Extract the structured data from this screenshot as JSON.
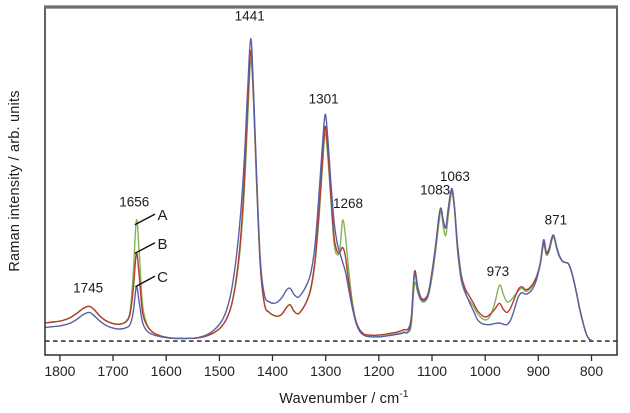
{
  "chart_data": {
    "type": "line",
    "title": "",
    "xlabel": "Wavenumber / cm",
    "xlabel_superscript": "-1",
    "ylabel": "Raman intensity / arb. units",
    "x_axis": {
      "ticks": [
        1800,
        1700,
        1600,
        1500,
        1400,
        1300,
        1200,
        1100,
        1000,
        900,
        800
      ],
      "xlim": [
        1828,
        752
      ],
      "reversed": true,
      "unit": "cm-1"
    },
    "y_axis": {
      "ylim": [
        -4.6,
        110.5
      ],
      "baseline": 0,
      "baseline_style": "dashed",
      "ticks": []
    },
    "x": [
      1830,
      1812,
      1795,
      1780,
      1768,
      1756,
      1745,
      1736,
      1726,
      1714,
      1700,
      1688,
      1676,
      1668,
      1662,
      1656,
      1651,
      1645,
      1637,
      1626,
      1612,
      1598,
      1580,
      1560,
      1540,
      1522,
      1508,
      1496,
      1486,
      1477,
      1468,
      1460,
      1453,
      1447,
      1441,
      1436,
      1430,
      1423,
      1415,
      1406,
      1398,
      1390,
      1382,
      1374,
      1367,
      1360,
      1352,
      1344,
      1336,
      1328,
      1320,
      1312,
      1306,
      1301,
      1296,
      1290,
      1284,
      1278,
      1273,
      1268,
      1263,
      1257,
      1250,
      1243,
      1236,
      1228,
      1220,
      1210,
      1200,
      1190,
      1180,
      1170,
      1160,
      1152,
      1145,
      1139,
      1133,
      1127,
      1121,
      1114,
      1107,
      1100,
      1093,
      1087,
      1083,
      1079,
      1074,
      1069,
      1063,
      1058,
      1052,
      1045,
      1038,
      1030,
      1022,
      1014,
      1006,
      998,
      990,
      982,
      973,
      966,
      959,
      952,
      945,
      938,
      931,
      924,
      917,
      910,
      903,
      896,
      890,
      885,
      880,
      875,
      871,
      866,
      861,
      855,
      849,
      843,
      836,
      829,
      822,
      815,
      809,
      804,
      800
    ],
    "series": [
      {
        "name": "A",
        "color": "#84b457",
        "values": [
          6.0,
          6.3,
          6.8,
          7.8,
          9.2,
          10.8,
          11.5,
          10.5,
          8.5,
          6.8,
          5.8,
          5.6,
          6.5,
          10,
          22,
          40,
          30,
          13,
          6,
          3,
          1.8,
          1.2,
          0.9,
          0.9,
          1.1,
          1.8,
          3,
          4.8,
          7.5,
          12,
          20,
          32,
          50,
          72,
          93,
          80,
          52,
          25,
          12,
          9.5,
          8.5,
          8.2,
          9,
          11,
          12,
          10,
          9,
          10.5,
          13,
          17,
          26,
          42,
          58,
          69,
          61,
          46,
          32,
          28.5,
          31,
          40,
          35,
          24,
          13,
          6.5,
          3.5,
          2,
          1.5,
          1.4,
          1.5,
          1.7,
          2,
          2.3,
          2.6,
          3,
          3,
          5.5,
          19,
          16,
          13.5,
          13,
          15,
          21,
          30,
          39,
          43,
          38,
          35,
          42,
          49,
          44,
          30,
          20,
          16,
          13.5,
          11.5,
          9,
          7.5,
          7,
          8.5,
          12.5,
          18.5,
          15.5,
          13,
          13.5,
          15,
          16.5,
          17.5,
          16.5,
          17,
          18.5,
          21,
          25.5,
          32,
          28.5,
          29.5,
          33,
          34.5,
          31,
          28,
          26.5,
          26,
          25.5,
          22,
          16.5,
          10.5,
          5.5,
          2,
          0.6,
          0.3
        ]
      },
      {
        "name": "B",
        "color": "#b33d31",
        "values": [
          6.0,
          6.3,
          6.8,
          7.8,
          9.2,
          10.8,
          11.5,
          10.5,
          8.5,
          6.8,
          5.8,
          5.6,
          6.3,
          9,
          17,
          29,
          22,
          10,
          5.5,
          3,
          1.8,
          1.2,
          0.9,
          0.9,
          1.1,
          1.8,
          3,
          4.8,
          7.5,
          12,
          21,
          34,
          53,
          76,
          96,
          82,
          53,
          25,
          12,
          9.5,
          8.5,
          8.2,
          9,
          11,
          12,
          10,
          9,
          10.5,
          13,
          17.5,
          27,
          44,
          60,
          71,
          63,
          48,
          34,
          29.5,
          29.5,
          31,
          28,
          20,
          12,
          6.5,
          3.8,
          2.3,
          2,
          1.9,
          2,
          2.2,
          2.5,
          2.8,
          3.3,
          3.8,
          4,
          8,
          23,
          18,
          14.5,
          14,
          16,
          23,
          32,
          41,
          44,
          40,
          37.5,
          44,
          50,
          45,
          32,
          22,
          17.5,
          15,
          12.5,
          10,
          8.5,
          8,
          9,
          10.5,
          12.5,
          10.5,
          9.5,
          11,
          14,
          17,
          18,
          17,
          17.5,
          19,
          21.5,
          26,
          32.5,
          29,
          30,
          33.5,
          35,
          31.5,
          28.5,
          26.5,
          26,
          25.5,
          22,
          16.5,
          10.5,
          5.5,
          2,
          0.6,
          0.3
        ]
      },
      {
        "name": "C",
        "color": "#5860a6",
        "values": [
          4.5,
          4.8,
          5.2,
          6.0,
          7.2,
          8.8,
          9.5,
          8.5,
          6.8,
          5.3,
          4.3,
          4.0,
          4.4,
          5.5,
          9.5,
          18,
          13,
          6.5,
          3.5,
          2.2,
          1.5,
          1.1,
          0.9,
          0.9,
          1.2,
          2.2,
          4,
          6.5,
          10.5,
          17,
          28,
          42,
          60,
          82,
          100,
          84,
          55,
          27,
          15,
          13,
          12.5,
          13,
          14.5,
          16.8,
          17.5,
          15.5,
          14.5,
          16,
          18.5,
          22.5,
          32,
          50,
          65,
          75,
          67,
          52,
          39,
          32,
          29,
          26,
          23,
          17.5,
          11,
          6,
          3.2,
          1.9,
          1.5,
          1.4,
          1.4,
          1.6,
          1.8,
          2.1,
          2.4,
          2.8,
          3,
          7,
          22,
          17,
          14,
          13.5,
          15.5,
          22.5,
          31.5,
          41,
          44,
          40,
          37.5,
          44.5,
          50.5,
          45,
          31,
          21,
          16.5,
          13,
          10,
          7,
          5.8,
          5.5,
          5.5,
          5.8,
          6,
          5.6,
          5.5,
          7,
          10.5,
          14.5,
          16,
          15.5,
          16,
          17.5,
          20.5,
          26,
          33.5,
          29.5,
          30.5,
          34,
          35,
          31.5,
          28.5,
          26.5,
          26,
          25.5,
          22,
          16.5,
          10.5,
          5.5,
          2,
          0.6,
          0.3
        ]
      }
    ],
    "peak_labels": [
      {
        "text": "1745",
        "x": 1747,
        "y": 17.5
      },
      {
        "text": "1656",
        "x": 1660,
        "y": 46
      },
      {
        "text": "1441",
        "x": 1443,
        "y": 107.5
      },
      {
        "text": "1301",
        "x": 1304,
        "y": 80
      },
      {
        "text": "1268",
        "x": 1258,
        "y": 45.5
      },
      {
        "text": "1083",
        "x": 1094,
        "y": 50
      },
      {
        "text": "1063",
        "x": 1057,
        "y": 54.5
      },
      {
        "text": "973",
        "x": 976,
        "y": 23
      },
      {
        "text": "871",
        "x": 867,
        "y": 40
      }
    ],
    "series_labels": [
      {
        "text": "A",
        "x": 1607,
        "y": 41.5,
        "leader": [
          1621,
          42,
          1659,
          38.5
        ]
      },
      {
        "text": "B",
        "x": 1607,
        "y": 32,
        "leader": [
          1621,
          32.5,
          1659,
          29
        ]
      },
      {
        "text": "C",
        "x": 1607,
        "y": 21,
        "leader": [
          1621,
          21.5,
          1658,
          18
        ]
      }
    ],
    "colors": {
      "frame": "#2d2d2d",
      "frame_top": "#6e6e6e",
      "baseline": "#3a3a3a",
      "text": "#1b1b1b",
      "tick_text": "#242424"
    }
  }
}
